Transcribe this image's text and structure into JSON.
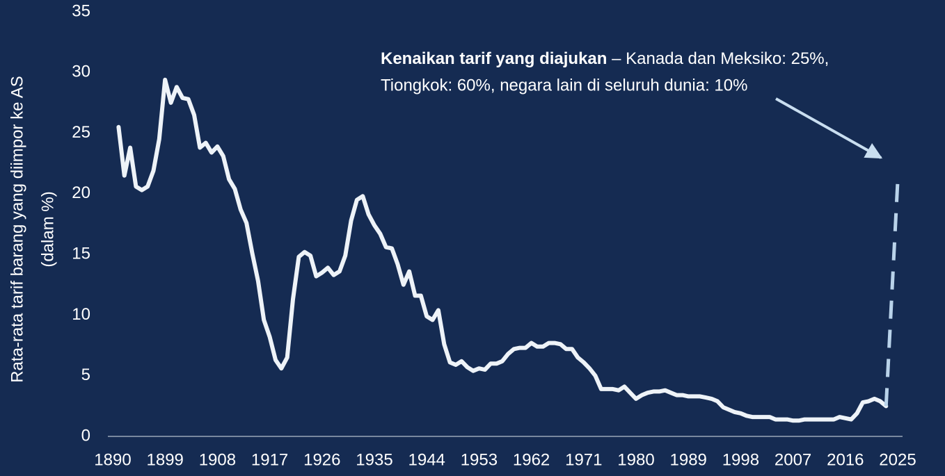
{
  "chart_data": {
    "type": "line",
    "y_label": [
      "Rata-rata tarif barang yang diimpor ke AS",
      "(dalam %)"
    ],
    "annotation": {
      "bold": "Kenaikan tarif yang diajukan",
      "text": [
        " – Kanada dan Meksiko: 25%,",
        "Tiongkok: 60%, negara lain di seluruh dunia: 10%"
      ]
    },
    "xlim": [
      1890,
      2025
    ],
    "xticks": [
      1890,
      1899,
      1908,
      1917,
      1926,
      1935,
      1944,
      1953,
      1962,
      1971,
      1980,
      1989,
      1998,
      2007,
      2016,
      2025
    ],
    "ylim": [
      0,
      35
    ],
    "yticks": [
      0,
      5,
      10,
      15,
      20,
      25,
      30,
      35
    ],
    "series": [
      {
        "color": "#eef3f8",
        "dashed": false,
        "x": [
          1891,
          1892,
          1893,
          1894,
          1895,
          1896,
          1897,
          1898,
          1899,
          1900,
          1901,
          1902,
          1903,
          1904,
          1905,
          1906,
          1907,
          1908,
          1909,
          1910,
          1911,
          1912,
          1913,
          1914,
          1915,
          1916,
          1917,
          1918,
          1919,
          1920,
          1921,
          1922,
          1923,
          1924,
          1925,
          1926,
          1927,
          1928,
          1929,
          1930,
          1931,
          1932,
          1933,
          1934,
          1935,
          1936,
          1937,
          1938,
          1939,
          1940,
          1941,
          1942,
          1943,
          1944,
          1945,
          1946,
          1947,
          1948,
          1949,
          1950,
          1951,
          1952,
          1953,
          1954,
          1955,
          1956,
          1957,
          1958,
          1959,
          1960,
          1961,
          1962,
          1963,
          1964,
          1965,
          1966,
          1967,
          1968,
          1969,
          1970,
          1971,
          1972,
          1973,
          1974,
          1975,
          1976,
          1977,
          1978,
          1979,
          1980,
          1981,
          1982,
          1983,
          1984,
          1985,
          1986,
          1987,
          1988,
          1989,
          1990,
          1991,
          1992,
          1993,
          1994,
          1995,
          1996,
          1997,
          1998,
          1999,
          2000,
          2001,
          2002,
          2003,
          2004,
          2005,
          2006,
          2007,
          2008,
          2009,
          2010,
          2011,
          2012,
          2013,
          2014,
          2015,
          2016,
          2017,
          2018,
          2019,
          2020,
          2021,
          2022,
          2023
        ],
        "values": [
          25.5,
          21.5,
          23.8,
          20.6,
          20.3,
          20.6,
          21.9,
          24.5,
          29.4,
          27.5,
          28.8,
          27.9,
          27.8,
          26.5,
          23.8,
          24.2,
          23.4,
          23.9,
          23.1,
          21.2,
          20.4,
          18.7,
          17.6,
          15.1,
          12.8,
          9.6,
          8.2,
          6.3,
          5.6,
          6.5,
          11.3,
          14.8,
          15.2,
          14.9,
          13.2,
          13.5,
          13.9,
          13.3,
          13.6,
          14.9,
          17.8,
          19.5,
          19.8,
          18.3,
          17.4,
          16.7,
          15.6,
          15.5,
          14.2,
          12.5,
          13.6,
          11.6,
          11.6,
          9.9,
          9.6,
          10.4,
          7.6,
          6.1,
          5.9,
          6.2,
          5.7,
          5.4,
          5.6,
          5.5,
          6.0,
          6.0,
          6.2,
          6.8,
          7.2,
          7.3,
          7.3,
          7.7,
          7.4,
          7.4,
          7.7,
          7.7,
          7.6,
          7.2,
          7.2,
          6.5,
          6.1,
          5.6,
          5.0,
          3.9,
          3.9,
          3.9,
          3.8,
          4.1,
          3.6,
          3.1,
          3.4,
          3.6,
          3.7,
          3.7,
          3.8,
          3.6,
          3.4,
          3.4,
          3.3,
          3.3,
          3.3,
          3.2,
          3.1,
          2.9,
          2.4,
          2.2,
          2.0,
          1.9,
          1.7,
          1.6,
          1.6,
          1.6,
          1.6,
          1.4,
          1.4,
          1.4,
          1.3,
          1.3,
          1.4,
          1.4,
          1.4,
          1.4,
          1.4,
          1.4,
          1.6,
          1.5,
          1.4,
          1.9,
          2.8,
          2.9,
          3.1,
          2.9,
          2.5
        ]
      },
      {
        "color": "#b9d3ea",
        "dashed": true,
        "x": [
          2023,
          2025
        ],
        "values": [
          2.5,
          21.0
        ]
      }
    ]
  }
}
